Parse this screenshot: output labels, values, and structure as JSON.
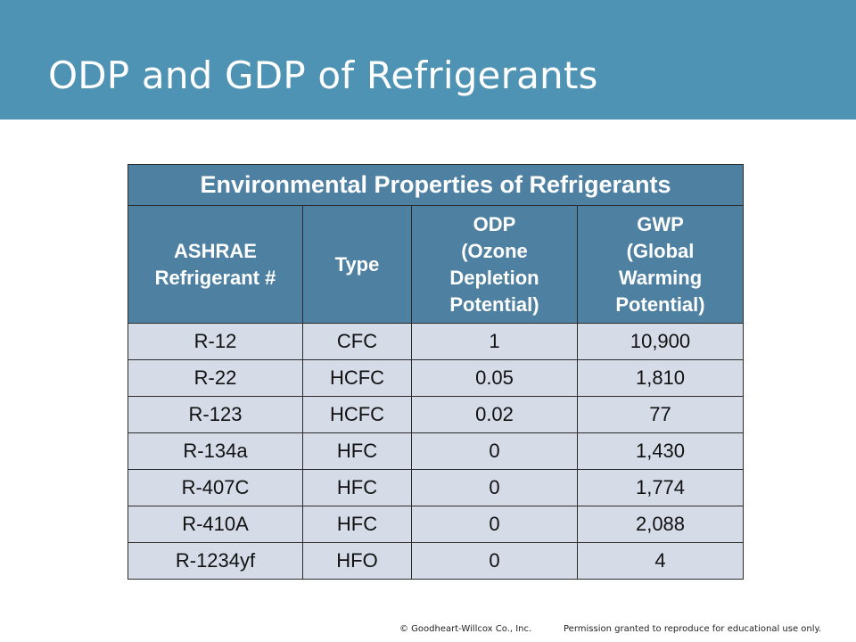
{
  "slide": {
    "title": "ODP and GDP of Refrigerants"
  },
  "table": {
    "caption": "Environmental Properties of Refrigerants",
    "headers": [
      [
        "ASHRAE",
        "Refrigerant #"
      ],
      [
        "Type"
      ],
      [
        "ODP",
        "(Ozone",
        "Depletion",
        "Potential)"
      ],
      [
        "GWP",
        "(Global",
        "Warming",
        "Potential)"
      ]
    ],
    "rows": [
      [
        "R-12",
        "CFC",
        "1",
        "10,900"
      ],
      [
        "R-22",
        "HCFC",
        "0.05",
        "1,810"
      ],
      [
        "R-123",
        "HCFC",
        "0.02",
        "77"
      ],
      [
        "R-134a",
        "HFC",
        "0",
        "1,430"
      ],
      [
        "R-407C",
        "HFC",
        "0",
        "1,774"
      ],
      [
        "R-410A",
        "HFC",
        "0",
        "2,088"
      ],
      [
        "R-1234yf",
        "HFO",
        "0",
        "4"
      ]
    ]
  },
  "footer": {
    "copyright": "© Goodheart-Willcox Co., Inc.",
    "permission": "Permission granted to reproduce for educational use only."
  },
  "colors": {
    "header_band": "#4f93b4",
    "table_header": "#4e80a2",
    "table_body": "#d5dce8"
  }
}
